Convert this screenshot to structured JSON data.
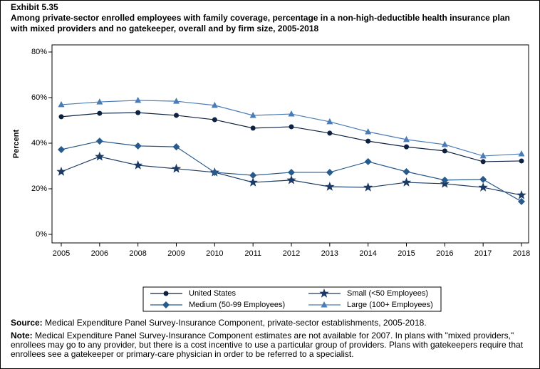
{
  "exhibit": "Exhibit 5.35",
  "chart_data": {
    "type": "line",
    "title": "Among private-sector enrolled employees with family coverage, percentage in a non-high-deductible health insurance plan with mixed providers and no gatekeeper, overall and by firm size, 2005-2018",
    "y_label": "Percent",
    "categories": [
      "2005",
      "2006",
      "2008",
      "2009",
      "2010",
      "2011",
      "2012",
      "2013",
      "2014",
      "2015",
      "2016",
      "2017",
      "2018"
    ],
    "series": [
      {
        "name": "United States",
        "color": "#0d2240",
        "marker": "circle",
        "values": [
          51.6,
          53.1,
          53.4,
          52.2,
          50.3,
          46.6,
          47.2,
          44.4,
          40.9,
          38.4,
          36.6,
          31.9,
          32.2
        ]
      },
      {
        "name": "Small (<50 Employees)",
        "color": "#1c3a63",
        "marker": "star",
        "values": [
          27.5,
          34.1,
          30.3,
          28.8,
          27.2,
          22.8,
          23.8,
          20.9,
          20.6,
          22.8,
          22.2,
          20.6,
          17.2
        ]
      },
      {
        "name": "Medium (50-99 Employees)",
        "color": "#285a8c",
        "marker": "diamond",
        "values": [
          37.2,
          40.9,
          38.8,
          38.4,
          27.2,
          25.9,
          27.2,
          27.2,
          31.9,
          27.5,
          23.8,
          24.1,
          14.4
        ]
      },
      {
        "name": "Large (100+ Employees)",
        "color": "#4a7db5",
        "marker": "triangle",
        "values": [
          56.9,
          58.1,
          58.8,
          58.4,
          56.6,
          52.2,
          52.8,
          49.4,
          45.0,
          41.6,
          39.4,
          34.4,
          35.3
        ]
      }
    ],
    "ylim": [
      0,
      80
    ],
    "yticks": [
      {
        "value": 0,
        "label": "0%"
      },
      {
        "value": 20,
        "label": "20%"
      },
      {
        "value": 40,
        "label": "40%"
      },
      {
        "value": 60,
        "label": "60%"
      },
      {
        "value": 80,
        "label": "80%"
      }
    ],
    "grid": false
  },
  "source": {
    "label": "Source:",
    "text": "Medical Expenditure Panel Survey-Insurance Component, private-sector establishments, 2005-2018."
  },
  "note": {
    "label": "Note:",
    "text": "Medical Expenditure Panel Survey-Insurance Component estimates are not available for 2007. In plans with \"mixed providers,\" enrollees may go to any provider, but there is a cost incentive to use a particular group of providers. Plans with gatekeepers require that enrollees see a gatekeeper or primary-care physician in order to be referred to a specialist."
  }
}
